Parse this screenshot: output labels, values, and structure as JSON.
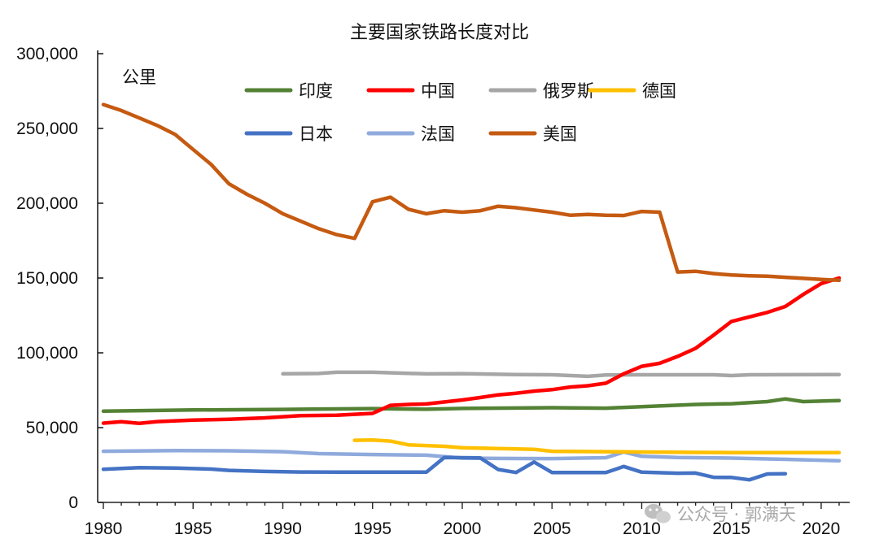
{
  "chart_data": {
    "type": "line",
    "title": "主要国家铁路长度对比",
    "unit_label": "公里",
    "xlim": [
      1980,
      2021
    ],
    "ylim": [
      0,
      300000
    ],
    "x_ticks": [
      "1980",
      "1985",
      "1990",
      "1995",
      "2000",
      "2005",
      "2010",
      "2015",
      "2020"
    ],
    "y_ticks": [
      "0",
      "50,000",
      "100,000",
      "150,000",
      "200,000",
      "250,000",
      "300,000"
    ],
    "legend_position": "top",
    "grid": false,
    "series": [
      {
        "name": "印度",
        "color": "#548235",
        "points": [
          [
            1980,
            61000
          ],
          [
            1985,
            61800
          ],
          [
            1990,
            62200
          ],
          [
            1995,
            62700
          ],
          [
            1998,
            62300
          ],
          [
            2000,
            62800
          ],
          [
            2005,
            63300
          ],
          [
            2008,
            63000
          ],
          [
            2010,
            64000
          ],
          [
            2013,
            65500
          ],
          [
            2015,
            66000
          ],
          [
            2017,
            67400
          ],
          [
            2018,
            69200
          ],
          [
            2019,
            67400
          ],
          [
            2021,
            68100
          ]
        ]
      },
      {
        "name": "中国",
        "color": "#ff0000",
        "points": [
          [
            1980,
            53000
          ],
          [
            1981,
            53900
          ],
          [
            1982,
            52800
          ],
          [
            1983,
            54000
          ],
          [
            1985,
            55000
          ],
          [
            1987,
            55600
          ],
          [
            1989,
            56500
          ],
          [
            1991,
            58000
          ],
          [
            1993,
            58300
          ],
          [
            1995,
            59500
          ],
          [
            1996,
            64900
          ],
          [
            1997,
            65500
          ],
          [
            1998,
            65800
          ],
          [
            2000,
            68500
          ],
          [
            2001,
            70100
          ],
          [
            2002,
            71900
          ],
          [
            2003,
            73000
          ],
          [
            2004,
            74400
          ],
          [
            2005,
            75400
          ],
          [
            2006,
            77100
          ],
          [
            2007,
            78000
          ],
          [
            2008,
            79700
          ],
          [
            2009,
            86000
          ],
          [
            2010,
            91000
          ],
          [
            2011,
            93000
          ],
          [
            2012,
            97600
          ],
          [
            2013,
            103000
          ],
          [
            2014,
            111800
          ],
          [
            2015,
            121000
          ],
          [
            2016,
            124000
          ],
          [
            2017,
            127000
          ],
          [
            2018,
            131000
          ],
          [
            2019,
            139000
          ],
          [
            2020,
            146300
          ],
          [
            2021,
            150000
          ]
        ]
      },
      {
        "name": "俄罗斯",
        "color": "#a6a6a6",
        "points": [
          [
            1990,
            86000
          ],
          [
            1992,
            86200
          ],
          [
            1993,
            87000
          ],
          [
            1995,
            87000
          ],
          [
            1998,
            85900
          ],
          [
            2000,
            86100
          ],
          [
            2003,
            85500
          ],
          [
            2005,
            85300
          ],
          [
            2007,
            84300
          ],
          [
            2008,
            85200
          ],
          [
            2010,
            85300
          ],
          [
            2014,
            85300
          ],
          [
            2015,
            84800
          ],
          [
            2016,
            85300
          ],
          [
            2018,
            85400
          ],
          [
            2021,
            85500
          ]
        ]
      },
      {
        "name": "德国",
        "color": "#ffc000",
        "points": [
          [
            1994,
            41500
          ],
          [
            1995,
            41700
          ],
          [
            1996,
            41000
          ],
          [
            1997,
            38500
          ],
          [
            1999,
            37500
          ],
          [
            2000,
            36600
          ],
          [
            2002,
            36000
          ],
          [
            2004,
            35500
          ],
          [
            2005,
            34200
          ],
          [
            2008,
            33900
          ],
          [
            2010,
            33700
          ],
          [
            2013,
            33400
          ],
          [
            2015,
            33300
          ],
          [
            2018,
            33300
          ],
          [
            2021,
            33300
          ]
        ]
      },
      {
        "name": "日本",
        "color": "#4472c4",
        "points": [
          [
            1980,
            22200
          ],
          [
            1982,
            23200
          ],
          [
            1984,
            23000
          ],
          [
            1986,
            22300
          ],
          [
            1987,
            21400
          ],
          [
            1989,
            20700
          ],
          [
            1991,
            20300
          ],
          [
            1993,
            20200
          ],
          [
            1998,
            20200
          ],
          [
            1999,
            30000
          ],
          [
            2001,
            29800
          ],
          [
            2002,
            22000
          ],
          [
            2003,
            20000
          ],
          [
            2004,
            27000
          ],
          [
            2005,
            20000
          ],
          [
            2008,
            20000
          ],
          [
            2009,
            24000
          ],
          [
            2010,
            20200
          ],
          [
            2012,
            19500
          ],
          [
            2013,
            19600
          ],
          [
            2014,
            16800
          ],
          [
            2015,
            16700
          ],
          [
            2016,
            15100
          ],
          [
            2017,
            19000
          ],
          [
            2018,
            19200
          ]
        ]
      },
      {
        "name": "法国",
        "color": "#8faadc",
        "points": [
          [
            1980,
            34200
          ],
          [
            1984,
            34600
          ],
          [
            1987,
            34500
          ],
          [
            1990,
            33900
          ],
          [
            1992,
            32600
          ],
          [
            1995,
            32000
          ],
          [
            1998,
            31600
          ],
          [
            2000,
            29600
          ],
          [
            2002,
            29400
          ],
          [
            2005,
            29300
          ],
          [
            2008,
            29900
          ],
          [
            2009,
            33700
          ],
          [
            2010,
            30800
          ],
          [
            2012,
            30000
          ],
          [
            2015,
            29600
          ],
          [
            2018,
            28800
          ],
          [
            2021,
            27800
          ]
        ]
      },
      {
        "name": "美国",
        "color": "#c55a11",
        "points": [
          [
            1980,
            266000
          ],
          [
            1981,
            262000
          ],
          [
            1982,
            257000
          ],
          [
            1983,
            252000
          ],
          [
            1984,
            246000
          ],
          [
            1985,
            236000
          ],
          [
            1986,
            226000
          ],
          [
            1987,
            213000
          ],
          [
            1988,
            206000
          ],
          [
            1989,
            200000
          ],
          [
            1990,
            193000
          ],
          [
            1991,
            188000
          ],
          [
            1992,
            183000
          ],
          [
            1993,
            179000
          ],
          [
            1994,
            176500
          ],
          [
            1995,
            201000
          ],
          [
            1996,
            204000
          ],
          [
            1997,
            196000
          ],
          [
            1998,
            193000
          ],
          [
            1999,
            195000
          ],
          [
            2000,
            194000
          ],
          [
            2001,
            195000
          ],
          [
            2002,
            198000
          ],
          [
            2003,
            197000
          ],
          [
            2004,
            195500
          ],
          [
            2005,
            194000
          ],
          [
            2006,
            192000
          ],
          [
            2007,
            192500
          ],
          [
            2008,
            192000
          ],
          [
            2009,
            191800
          ],
          [
            2010,
            194500
          ],
          [
            2011,
            194000
          ],
          [
            2012,
            154000
          ],
          [
            2013,
            154500
          ],
          [
            2014,
            153000
          ],
          [
            2015,
            152000
          ],
          [
            2016,
            151500
          ],
          [
            2017,
            151200
          ],
          [
            2018,
            150500
          ],
          [
            2019,
            149800
          ],
          [
            2020,
            149000
          ],
          [
            2021,
            148500
          ]
        ]
      }
    ]
  },
  "watermark": "公众号 · 郭满天"
}
